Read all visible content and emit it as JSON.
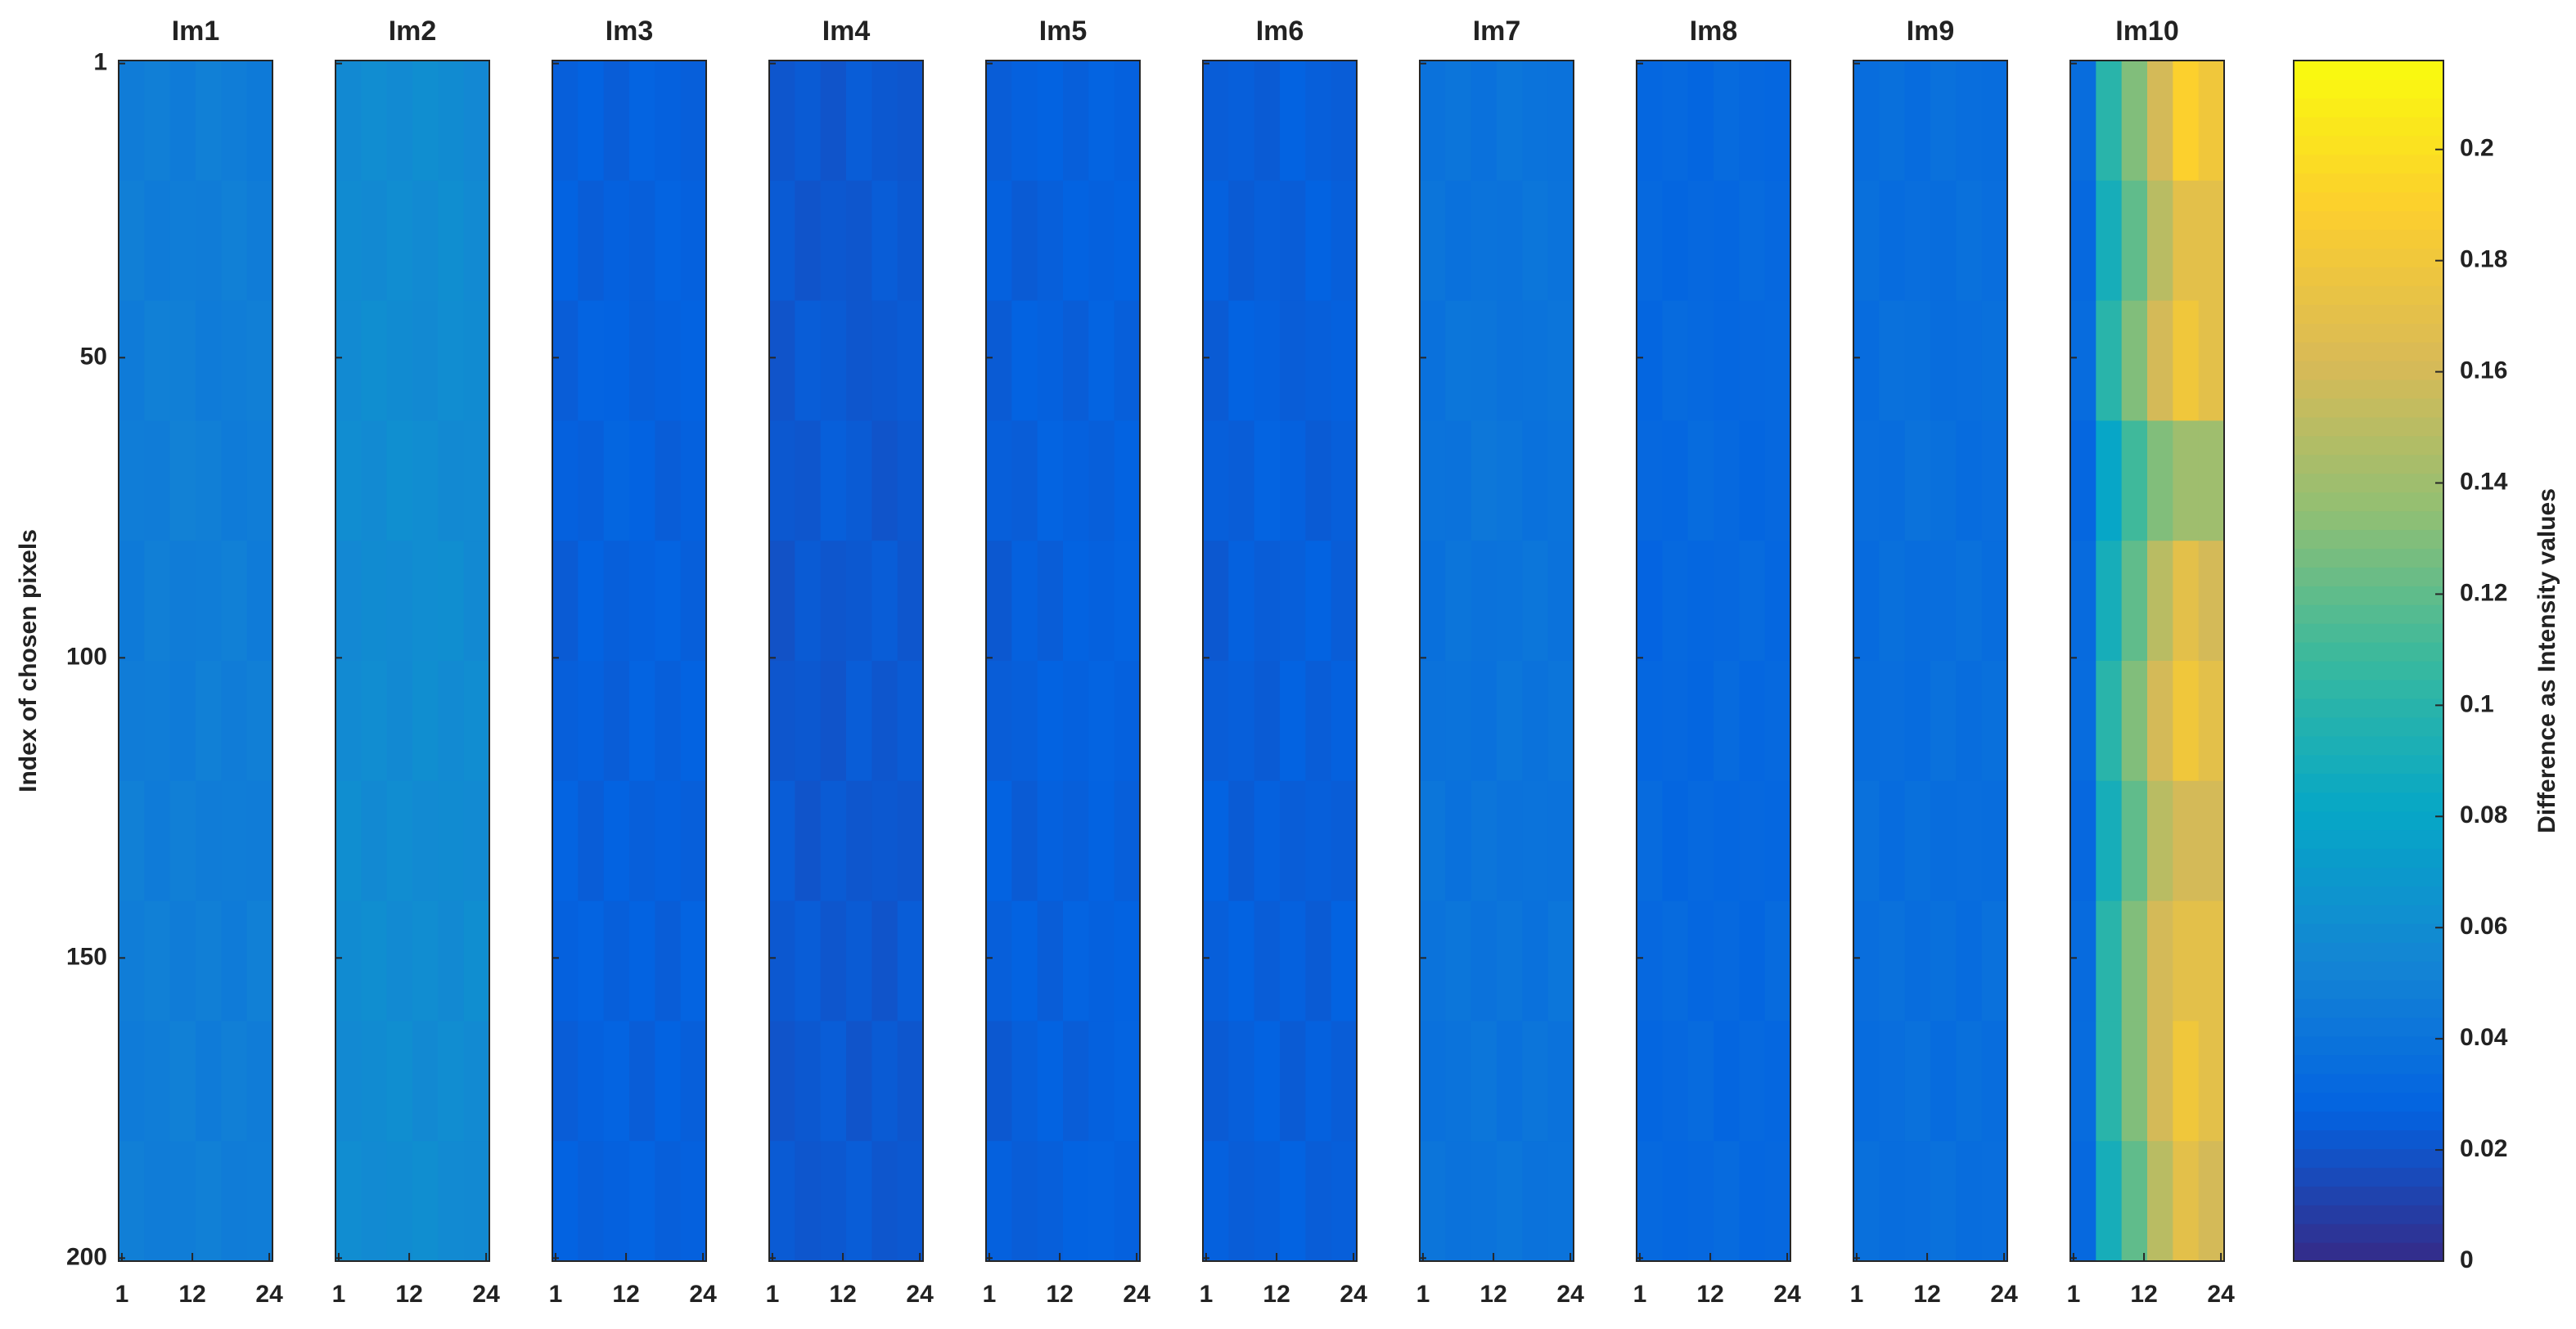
{
  "chart_data": {
    "type": "heatmap",
    "ylabel": "Index of chosen pixels",
    "xlim": [
      0.5,
      24.5
    ],
    "ylim": [
      0.5,
      200.5
    ],
    "xticks": [
      1,
      12,
      24
    ],
    "yticks": [
      1,
      50,
      100,
      150,
      200
    ],
    "y_reversed": true,
    "colormap": [
      "#352a87",
      "#0363e1",
      "#1485d4",
      "#06a7c6",
      "#38b99e",
      "#92bf73",
      "#d9ba56",
      "#fcce2e",
      "#f9fb0e"
    ],
    "colorbar": {
      "label": "Difference as Intensity values",
      "clim": [
        0,
        0.216
      ],
      "ticks": [
        0,
        0.02,
        0.04,
        0.06,
        0.08,
        0.1,
        0.12,
        0.14,
        0.16,
        0.18,
        0.2
      ]
    },
    "panels": [
      {
        "title": "Im1",
        "values": [
          [
            0.047,
            0.049,
            0.046,
            0.05,
            0.048,
            0.045
          ],
          [
            0.049,
            0.046,
            0.048,
            0.047,
            0.05,
            0.047
          ],
          [
            0.046,
            0.05,
            0.049,
            0.046,
            0.048,
            0.049
          ],
          [
            0.048,
            0.047,
            0.051,
            0.049,
            0.046,
            0.048
          ],
          [
            0.045,
            0.049,
            0.047,
            0.048,
            0.05,
            0.046
          ],
          [
            0.047,
            0.048,
            0.046,
            0.05,
            0.047,
            0.049
          ],
          [
            0.05,
            0.046,
            0.049,
            0.047,
            0.048,
            0.047
          ],
          [
            0.048,
            0.05,
            0.047,
            0.049,
            0.046,
            0.05
          ],
          [
            0.046,
            0.048,
            0.05,
            0.046,
            0.049,
            0.047
          ],
          [
            0.049,
            0.047,
            0.048,
            0.05,
            0.047,
            0.048
          ]
        ]
      },
      {
        "title": "Im2",
        "values": [
          [
            0.057,
            0.06,
            0.058,
            0.061,
            0.059,
            0.056
          ],
          [
            0.059,
            0.057,
            0.06,
            0.058,
            0.061,
            0.058
          ],
          [
            0.058,
            0.061,
            0.059,
            0.057,
            0.06,
            0.059
          ],
          [
            0.06,
            0.058,
            0.062,
            0.06,
            0.057,
            0.058
          ],
          [
            0.056,
            0.059,
            0.058,
            0.06,
            0.061,
            0.057
          ],
          [
            0.058,
            0.06,
            0.057,
            0.061,
            0.058,
            0.06
          ],
          [
            0.061,
            0.057,
            0.06,
            0.058,
            0.059,
            0.058
          ],
          [
            0.059,
            0.061,
            0.058,
            0.06,
            0.057,
            0.061
          ],
          [
            0.057,
            0.059,
            0.061,
            0.057,
            0.06,
            0.058
          ],
          [
            0.06,
            0.058,
            0.059,
            0.061,
            0.058,
            0.057
          ]
        ]
      },
      {
        "title": "Im3",
        "values": [
          [
            0.025,
            0.027,
            0.024,
            0.028,
            0.026,
            0.025
          ],
          [
            0.027,
            0.024,
            0.026,
            0.025,
            0.028,
            0.026
          ],
          [
            0.024,
            0.028,
            0.027,
            0.025,
            0.026,
            0.027
          ],
          [
            0.026,
            0.025,
            0.029,
            0.027,
            0.024,
            0.026
          ],
          [
            0.023,
            0.027,
            0.025,
            0.026,
            0.028,
            0.025
          ],
          [
            0.025,
            0.026,
            0.024,
            0.028,
            0.025,
            0.027
          ],
          [
            0.028,
            0.024,
            0.027,
            0.025,
            0.026,
            0.025
          ],
          [
            0.026,
            0.028,
            0.025,
            0.027,
            0.024,
            0.028
          ],
          [
            0.024,
            0.026,
            0.028,
            0.024,
            0.027,
            0.025
          ],
          [
            0.027,
            0.025,
            0.026,
            0.028,
            0.025,
            0.026
          ]
        ]
      },
      {
        "title": "Im4",
        "values": [
          [
            0.021,
            0.023,
            0.02,
            0.024,
            0.022,
            0.021
          ],
          [
            0.023,
            0.02,
            0.022,
            0.021,
            0.024,
            0.022
          ],
          [
            0.02,
            0.024,
            0.023,
            0.021,
            0.022,
            0.023
          ],
          [
            0.022,
            0.021,
            0.025,
            0.023,
            0.02,
            0.022
          ],
          [
            0.019,
            0.023,
            0.021,
            0.022,
            0.024,
            0.021
          ],
          [
            0.021,
            0.022,
            0.02,
            0.024,
            0.021,
            0.023
          ],
          [
            0.024,
            0.02,
            0.023,
            0.021,
            0.022,
            0.021
          ],
          [
            0.022,
            0.024,
            0.021,
            0.023,
            0.02,
            0.024
          ],
          [
            0.02,
            0.022,
            0.024,
            0.02,
            0.023,
            0.021
          ],
          [
            0.023,
            0.021,
            0.022,
            0.024,
            0.021,
            0.022
          ]
        ]
      },
      {
        "title": "Im5",
        "values": [
          [
            0.024,
            0.026,
            0.027,
            0.025,
            0.028,
            0.026
          ],
          [
            0.026,
            0.023,
            0.025,
            0.027,
            0.026,
            0.027
          ],
          [
            0.023,
            0.027,
            0.026,
            0.024,
            0.028,
            0.025
          ],
          [
            0.025,
            0.024,
            0.028,
            0.026,
            0.025,
            0.027
          ],
          [
            0.022,
            0.026,
            0.024,
            0.027,
            0.026,
            0.028
          ],
          [
            0.024,
            0.025,
            0.027,
            0.026,
            0.028,
            0.026
          ],
          [
            0.027,
            0.023,
            0.026,
            0.025,
            0.027,
            0.025
          ],
          [
            0.025,
            0.027,
            0.024,
            0.028,
            0.026,
            0.027
          ],
          [
            0.022,
            0.025,
            0.027,
            0.024,
            0.026,
            0.028
          ],
          [
            0.026,
            0.024,
            0.025,
            0.027,
            0.028,
            0.026
          ]
        ]
      },
      {
        "title": "Im6",
        "values": [
          [
            0.024,
            0.025,
            0.023,
            0.027,
            0.025,
            0.024
          ],
          [
            0.026,
            0.023,
            0.025,
            0.024,
            0.027,
            0.025
          ],
          [
            0.023,
            0.027,
            0.026,
            0.024,
            0.025,
            0.026
          ],
          [
            0.025,
            0.024,
            0.028,
            0.026,
            0.023,
            0.025
          ],
          [
            0.022,
            0.026,
            0.024,
            0.025,
            0.027,
            0.024
          ],
          [
            0.024,
            0.025,
            0.023,
            0.027,
            0.024,
            0.026
          ],
          [
            0.027,
            0.023,
            0.026,
            0.024,
            0.025,
            0.024
          ],
          [
            0.025,
            0.027,
            0.024,
            0.026,
            0.023,
            0.027
          ],
          [
            0.023,
            0.025,
            0.027,
            0.023,
            0.026,
            0.024
          ],
          [
            0.026,
            0.024,
            0.025,
            0.027,
            0.024,
            0.025
          ]
        ]
      },
      {
        "title": "Im7",
        "values": [
          [
            0.039,
            0.041,
            0.038,
            0.042,
            0.04,
            0.039
          ],
          [
            0.041,
            0.038,
            0.04,
            0.039,
            0.042,
            0.04
          ],
          [
            0.038,
            0.042,
            0.041,
            0.039,
            0.04,
            0.041
          ],
          [
            0.04,
            0.039,
            0.043,
            0.041,
            0.038,
            0.04
          ],
          [
            0.037,
            0.041,
            0.039,
            0.04,
            0.042,
            0.039
          ],
          [
            0.039,
            0.04,
            0.038,
            0.042,
            0.039,
            0.041
          ],
          [
            0.042,
            0.038,
            0.041,
            0.039,
            0.04,
            0.039
          ],
          [
            0.04,
            0.042,
            0.039,
            0.041,
            0.038,
            0.042
          ],
          [
            0.038,
            0.04,
            0.042,
            0.038,
            0.041,
            0.039
          ],
          [
            0.041,
            0.039,
            0.04,
            0.042,
            0.039,
            0.04
          ]
        ]
      },
      {
        "title": "Im8",
        "values": [
          [
            0.03,
            0.032,
            0.029,
            0.033,
            0.031,
            0.03
          ],
          [
            0.032,
            0.029,
            0.031,
            0.03,
            0.033,
            0.031
          ],
          [
            0.029,
            0.033,
            0.032,
            0.03,
            0.031,
            0.032
          ],
          [
            0.031,
            0.03,
            0.034,
            0.032,
            0.029,
            0.031
          ],
          [
            0.028,
            0.032,
            0.03,
            0.031,
            0.033,
            0.03
          ],
          [
            0.03,
            0.031,
            0.029,
            0.033,
            0.03,
            0.032
          ],
          [
            0.033,
            0.029,
            0.032,
            0.03,
            0.031,
            0.03
          ],
          [
            0.031,
            0.033,
            0.03,
            0.032,
            0.029,
            0.033
          ],
          [
            0.029,
            0.031,
            0.033,
            0.029,
            0.032,
            0.03
          ],
          [
            0.032,
            0.03,
            0.031,
            0.033,
            0.03,
            0.031
          ]
        ]
      },
      {
        "title": "Im9",
        "values": [
          [
            0.035,
            0.037,
            0.034,
            0.038,
            0.036,
            0.035
          ],
          [
            0.037,
            0.034,
            0.036,
            0.035,
            0.038,
            0.036
          ],
          [
            0.034,
            0.038,
            0.037,
            0.035,
            0.036,
            0.037
          ],
          [
            0.036,
            0.035,
            0.039,
            0.037,
            0.034,
            0.036
          ],
          [
            0.033,
            0.037,
            0.035,
            0.036,
            0.038,
            0.035
          ],
          [
            0.035,
            0.036,
            0.034,
            0.038,
            0.035,
            0.037
          ],
          [
            0.038,
            0.034,
            0.037,
            0.035,
            0.036,
            0.035
          ],
          [
            0.036,
            0.038,
            0.035,
            0.037,
            0.034,
            0.038
          ],
          [
            0.034,
            0.036,
            0.038,
            0.034,
            0.037,
            0.035
          ],
          [
            0.037,
            0.035,
            0.036,
            0.038,
            0.035,
            0.036
          ]
        ]
      },
      {
        "title": "Im10",
        "values": [
          [
            0.035,
            0.1,
            0.13,
            0.16,
            0.19,
            0.18
          ],
          [
            0.032,
            0.09,
            0.12,
            0.15,
            0.17,
            0.17
          ],
          [
            0.034,
            0.1,
            0.13,
            0.16,
            0.18,
            0.17
          ],
          [
            0.03,
            0.08,
            0.11,
            0.13,
            0.14,
            0.14
          ],
          [
            0.033,
            0.09,
            0.12,
            0.15,
            0.17,
            0.16
          ],
          [
            0.034,
            0.1,
            0.13,
            0.16,
            0.18,
            0.17
          ],
          [
            0.031,
            0.09,
            0.12,
            0.15,
            0.16,
            0.16
          ],
          [
            0.033,
            0.1,
            0.13,
            0.16,
            0.17,
            0.17
          ],
          [
            0.034,
            0.1,
            0.13,
            0.16,
            0.18,
            0.17
          ],
          [
            0.032,
            0.09,
            0.12,
            0.15,
            0.17,
            0.16
          ]
        ]
      }
    ]
  }
}
